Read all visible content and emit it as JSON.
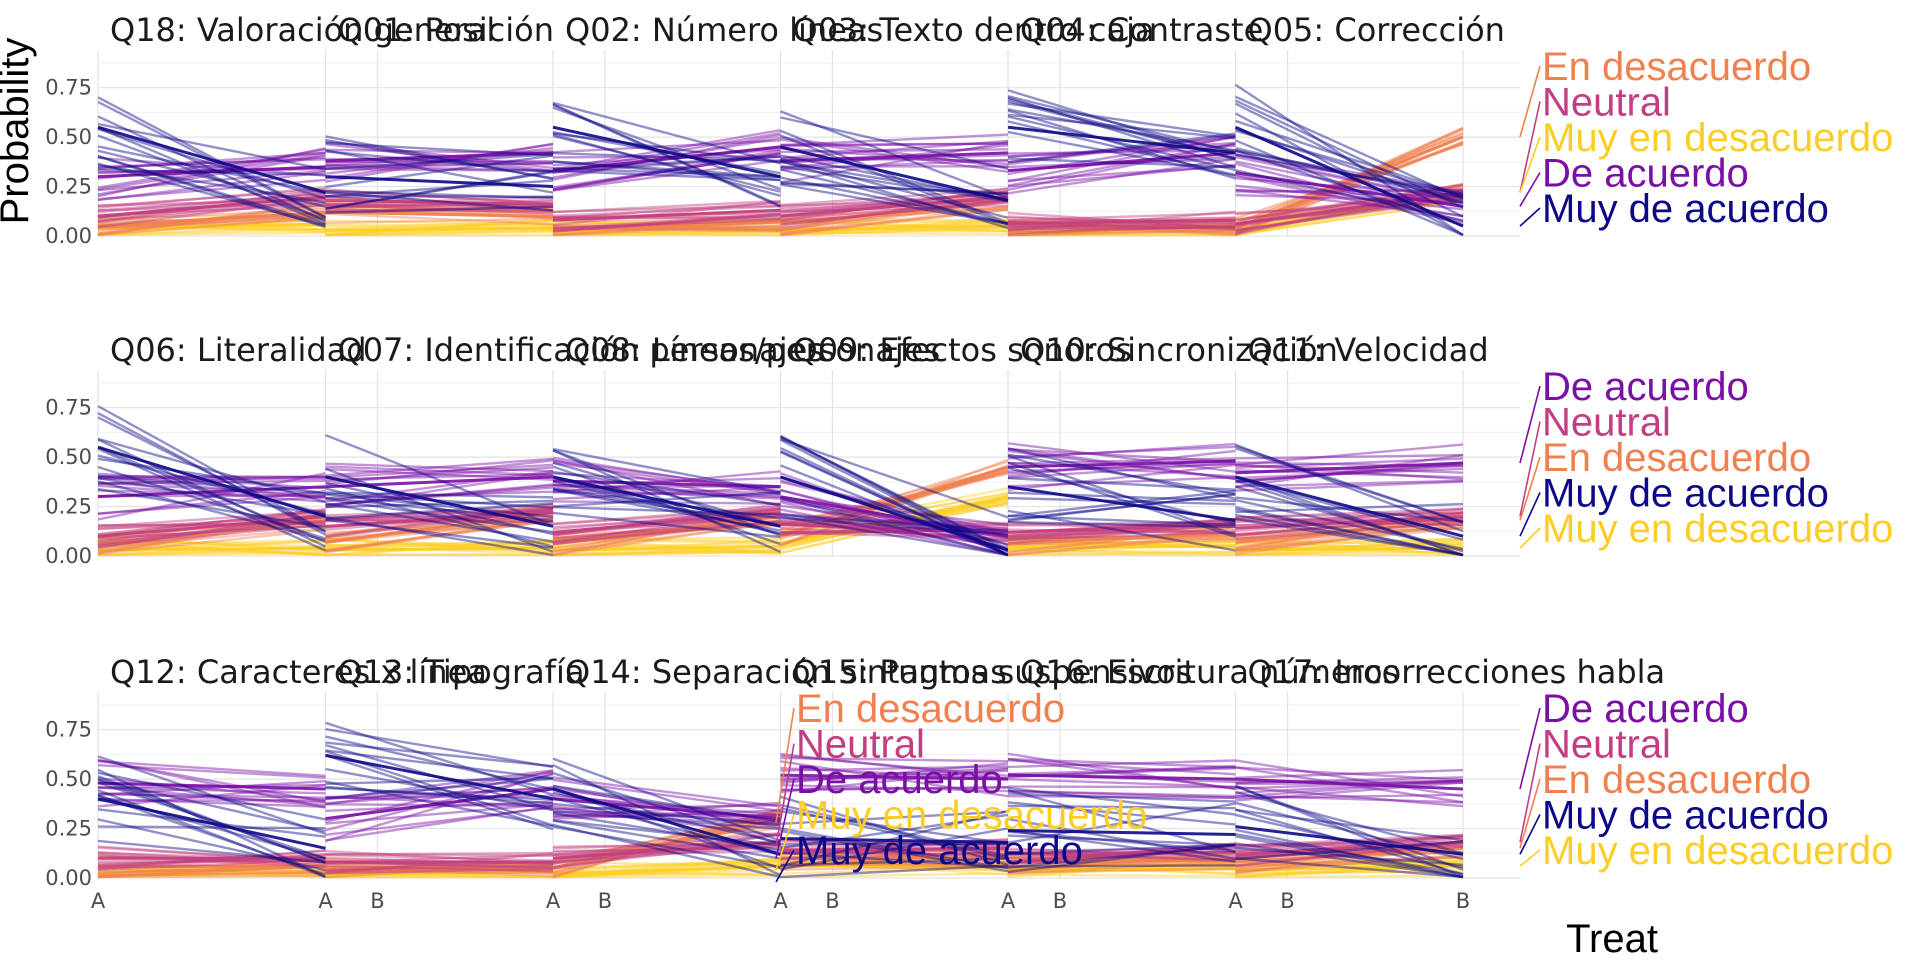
{
  "chart_data": {
    "type": "line",
    "xlabel": "Treat",
    "ylabel": "Probability",
    "y_ticks": [
      "0.00",
      "0.25",
      "0.50",
      "0.75"
    ],
    "ylim": [
      0,
      0.9
    ],
    "x_ticks": [
      "A",
      "B"
    ],
    "grid": true,
    "legend": "direct labels at right end of each facet row",
    "colors": {
      "Muy en desacuerdo": "#FCCE25",
      "En desacuerdo": "#F0804F",
      "Neutral": "#C23E80",
      "De acuerdo": "#7A0FA6",
      "Muy de acuerdo": "#0D0887"
    },
    "panels": [
      {
        "title": "Q18: Valoración general",
        "series": [
          {
            "name": "Muy en desacuerdo",
            "values": [
              0.04,
              0.06
            ]
          },
          {
            "name": "En desacuerdo",
            "values": [
              0.05,
              0.12
            ]
          },
          {
            "name": "Neutral",
            "values": [
              0.1,
              0.2
            ]
          },
          {
            "name": "De acuerdo",
            "values": [
              0.3,
              0.35
            ]
          },
          {
            "name": "Muy de acuerdo",
            "values": [
              0.55,
              0.22
            ]
          }
        ]
      },
      {
        "title": "Q01: Posición",
        "series": [
          {
            "name": "Muy en desacuerdo",
            "values": [
              0.03,
              0.04
            ]
          },
          {
            "name": "En desacuerdo",
            "values": [
              0.12,
              0.1
            ]
          },
          {
            "name": "Neutral",
            "values": [
              0.18,
              0.16
            ]
          },
          {
            "name": "De acuerdo",
            "values": [
              0.38,
              0.42
            ]
          },
          {
            "name": "Muy de acuerdo",
            "values": [
              0.3,
              0.25
            ]
          }
        ]
      },
      {
        "title": "Q02: Número líneas",
        "series": [
          {
            "name": "Muy en desacuerdo",
            "values": [
              0.03,
              0.04
            ]
          },
          {
            "name": "En desacuerdo",
            "values": [
              0.04,
              0.07
            ]
          },
          {
            "name": "Neutral",
            "values": [
              0.08,
              0.13
            ]
          },
          {
            "name": "De acuerdo",
            "values": [
              0.33,
              0.45
            ]
          },
          {
            "name": "Muy de acuerdo",
            "values": [
              0.55,
              0.3
            ]
          }
        ]
      },
      {
        "title": "Q03: Texto dentro caja",
        "series": [
          {
            "name": "Muy en desacuerdo",
            "values": [
              0.03,
              0.05
            ]
          },
          {
            "name": "En desacuerdo",
            "values": [
              0.06,
              0.18
            ]
          },
          {
            "name": "Neutral",
            "values": [
              0.1,
              0.2
            ]
          },
          {
            "name": "De acuerdo",
            "values": [
              0.38,
              0.42
            ]
          },
          {
            "name": "Muy de acuerdo",
            "values": [
              0.45,
              0.18
            ]
          }
        ]
      },
      {
        "title": "Q04: Contraste",
        "series": [
          {
            "name": "Muy en desacuerdo",
            "values": [
              0.02,
              0.03
            ]
          },
          {
            "name": "En desacuerdo",
            "values": [
              0.04,
              0.05
            ]
          },
          {
            "name": "Neutral",
            "values": [
              0.06,
              0.08
            ]
          },
          {
            "name": "De acuerdo",
            "values": [
              0.33,
              0.42
            ]
          },
          {
            "name": "Muy de acuerdo",
            "values": [
              0.55,
              0.42
            ]
          }
        ]
      },
      {
        "title": "Q05: Corrección",
        "series": [
          {
            "name": "Muy en desacuerdo",
            "values": [
              0.03,
              0.22
            ]
          },
          {
            "name": "En desacuerdo",
            "values": [
              0.04,
              0.5
            ]
          },
          {
            "name": "Neutral",
            "values": [
              0.06,
              0.22
            ]
          },
          {
            "name": "De acuerdo",
            "values": [
              0.32,
              0.15
            ]
          },
          {
            "name": "Muy de acuerdo",
            "values": [
              0.55,
              0.05
            ]
          }
        ]
      },
      {
        "title": "Q06: Literalidad",
        "series": [
          {
            "name": "Muy en desacuerdo",
            "values": [
              0.03,
              0.04
            ]
          },
          {
            "name": "En desacuerdo",
            "values": [
              0.06,
              0.18
            ]
          },
          {
            "name": "Neutral",
            "values": [
              0.1,
              0.2
            ]
          },
          {
            "name": "De acuerdo",
            "values": [
              0.3,
              0.35
            ]
          },
          {
            "name": "Muy de acuerdo",
            "values": [
              0.55,
              0.2
            ]
          }
        ]
      },
      {
        "title": "Q07: Identificación personajes",
        "series": [
          {
            "name": "Muy en desacuerdo",
            "values": [
              0.03,
              0.04
            ]
          },
          {
            "name": "En desacuerdo",
            "values": [
              0.07,
              0.22
            ]
          },
          {
            "name": "Neutral",
            "values": [
              0.15,
              0.22
            ]
          },
          {
            "name": "De acuerdo",
            "values": [
              0.35,
              0.4
            ]
          },
          {
            "name": "Muy de acuerdo",
            "values": [
              0.4,
              0.15
            ]
          }
        ]
      },
      {
        "title": "Q08: Líneas/personajes",
        "series": [
          {
            "name": "Muy en desacuerdo",
            "values": [
              0.03,
              0.05
            ]
          },
          {
            "name": "En desacuerdo",
            "values": [
              0.06,
              0.2
            ]
          },
          {
            "name": "Neutral",
            "values": [
              0.12,
              0.22
            ]
          },
          {
            "name": "De acuerdo",
            "values": [
              0.38,
              0.35
            ]
          },
          {
            "name": "Muy de acuerdo",
            "values": [
              0.4,
              0.15
            ]
          }
        ]
      },
      {
        "title": "Q09: Efectos sonoros",
        "series": [
          {
            "name": "Muy en desacuerdo",
            "values": [
              0.06,
              0.3
            ]
          },
          {
            "name": "En desacuerdo",
            "values": [
              0.1,
              0.45
            ]
          },
          {
            "name": "Neutral",
            "values": [
              0.16,
              0.12
            ]
          },
          {
            "name": "De acuerdo",
            "values": [
              0.3,
              0.1
            ]
          },
          {
            "name": "Muy de acuerdo",
            "values": [
              0.4,
              0.03
            ]
          }
        ]
      },
      {
        "title": "Q10: Sincronización",
        "series": [
          {
            "name": "Muy en desacuerdo",
            "values": [
              0.04,
              0.05
            ]
          },
          {
            "name": "En desacuerdo",
            "values": [
              0.06,
              0.12
            ]
          },
          {
            "name": "Neutral",
            "values": [
              0.12,
              0.16
            ]
          },
          {
            "name": "De acuerdo",
            "values": [
              0.45,
              0.48
            ]
          },
          {
            "name": "Muy de acuerdo",
            "values": [
              0.35,
              0.18
            ]
          }
        ]
      },
      {
        "title": "Q11: Velocidad",
        "series": [
          {
            "name": "Muy en desacuerdo",
            "values": [
              0.03,
              0.04
            ]
          },
          {
            "name": "En desacuerdo",
            "values": [
              0.07,
              0.18
            ]
          },
          {
            "name": "Neutral",
            "values": [
              0.14,
              0.2
            ]
          },
          {
            "name": "De acuerdo",
            "values": [
              0.42,
              0.47
            ]
          },
          {
            "name": "Muy de acuerdo",
            "values": [
              0.4,
              0.1
            ]
          }
        ]
      },
      {
        "title": "Q12: Caracteres x línea",
        "series": [
          {
            "name": "Muy en desacuerdo",
            "values": [
              0.02,
              0.03
            ]
          },
          {
            "name": "En desacuerdo",
            "values": [
              0.06,
              0.06
            ]
          },
          {
            "name": "Neutral",
            "values": [
              0.1,
              0.1
            ]
          },
          {
            "name": "De acuerdo",
            "values": [
              0.48,
              0.45
            ]
          },
          {
            "name": "Muy de acuerdo",
            "values": [
              0.4,
              0.15
            ]
          }
        ]
      },
      {
        "title": "Q13: Tipografía",
        "series": [
          {
            "name": "Muy en desacuerdo",
            "values": [
              0.02,
              0.03
            ]
          },
          {
            "name": "En desacuerdo",
            "values": [
              0.04,
              0.05
            ]
          },
          {
            "name": "Neutral",
            "values": [
              0.08,
              0.08
            ]
          },
          {
            "name": "De acuerdo",
            "values": [
              0.3,
              0.45
            ]
          },
          {
            "name": "Muy de acuerdo",
            "values": [
              0.62,
              0.4
            ]
          }
        ]
      },
      {
        "title": "Q14: Separación sintagmas",
        "series": [
          {
            "name": "Muy en desacuerdo",
            "values": [
              0.02,
              0.06
            ]
          },
          {
            "name": "En desacuerdo",
            "values": [
              0.05,
              0.3
            ]
          },
          {
            "name": "Neutral",
            "values": [
              0.1,
              0.18
            ]
          },
          {
            "name": "De acuerdo",
            "values": [
              0.4,
              0.3
            ]
          },
          {
            "name": "Muy de acuerdo",
            "values": [
              0.45,
              0.12
            ]
          }
        ]
      },
      {
        "title": "Q15: Puntos suspensivos",
        "series": [
          {
            "name": "Muy en desacuerdo",
            "values": [
              0.06,
              0.06
            ]
          },
          {
            "name": "En desacuerdo",
            "values": [
              0.1,
              0.1
            ]
          },
          {
            "name": "Neutral",
            "values": [
              0.14,
              0.15
            ]
          },
          {
            "name": "De acuerdo",
            "values": [
              0.52,
              0.5
            ]
          },
          {
            "name": "Muy de acuerdo",
            "values": [
              0.2,
              0.18
            ]
          }
        ]
      },
      {
        "title": "Q16: Escritura números",
        "series": [
          {
            "name": "Muy en desacuerdo",
            "values": [
              0.04,
              0.05
            ]
          },
          {
            "name": "En desacuerdo",
            "values": [
              0.08,
              0.09
            ]
          },
          {
            "name": "Neutral",
            "values": [
              0.12,
              0.13
            ]
          },
          {
            "name": "De acuerdo",
            "values": [
              0.52,
              0.5
            ]
          },
          {
            "name": "Muy de acuerdo",
            "values": [
              0.24,
              0.22
            ]
          }
        ]
      },
      {
        "title": "Q17: Incorrecciones habla",
        "series": [
          {
            "name": "Muy en desacuerdo",
            "values": [
              0.04,
              0.06
            ]
          },
          {
            "name": "En desacuerdo",
            "values": [
              0.08,
              0.15
            ]
          },
          {
            "name": "Neutral",
            "values": [
              0.12,
              0.18
            ]
          },
          {
            "name": "De acuerdo",
            "values": [
              0.5,
              0.45
            ]
          },
          {
            "name": "Muy de acuerdo",
            "values": [
              0.26,
              0.12
            ]
          }
        ]
      }
    ],
    "row_labels": [
      {
        "items": [
          {
            "name": "En desacuerdo",
            "y": 0.5
          },
          {
            "name": "Neutral",
            "y": 0.22
          },
          {
            "name": "Muy en desacuerdo",
            "y": 0.22
          },
          {
            "name": "De acuerdo",
            "y": 0.15
          },
          {
            "name": "Muy de acuerdo",
            "y": 0.05
          }
        ]
      },
      {
        "items": [
          {
            "name": "De acuerdo",
            "y": 0.47
          },
          {
            "name": "Neutral",
            "y": 0.2
          },
          {
            "name": "En desacuerdo",
            "y": 0.18
          },
          {
            "name": "Muy de acuerdo",
            "y": 0.1
          },
          {
            "name": "Muy en desacuerdo",
            "y": 0.04
          }
        ]
      },
      {
        "items": [
          {
            "name": "De acuerdo",
            "y": 0.45
          },
          {
            "name": "Neutral",
            "y": 0.18
          },
          {
            "name": "En desacuerdo",
            "y": 0.15
          },
          {
            "name": "Muy de acuerdo",
            "y": 0.12
          },
          {
            "name": "Muy en desacuerdo",
            "y": 0.06
          }
        ]
      }
    ],
    "stray_labels": {
      "items": [
        {
          "name": "En desacuerdo",
          "y": 0.3
        },
        {
          "name": "Neutral",
          "y": 0.18
        },
        {
          "name": "De acuerdo",
          "y": 0.12
        },
        {
          "name": "Muy en desacuerdo",
          "y": 0.06
        },
        {
          "name": "Muy de acuerdo",
          "y": 0.0
        }
      ]
    }
  }
}
